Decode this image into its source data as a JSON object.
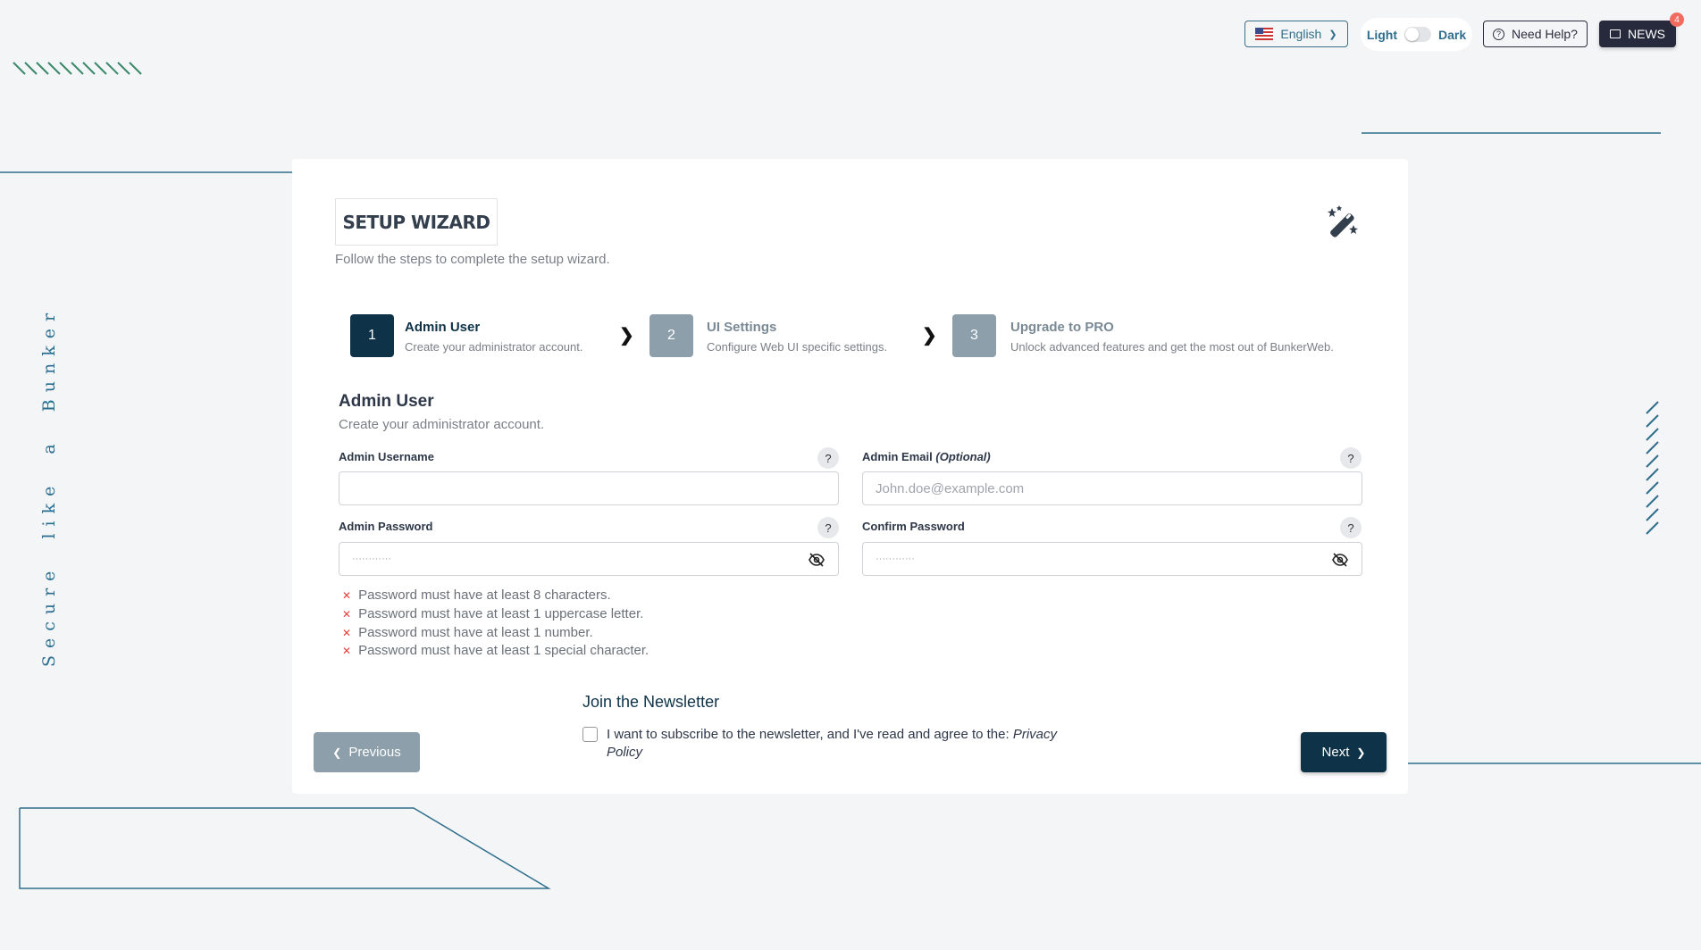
{
  "topbar": {
    "language": "English",
    "theme_light": "Light",
    "theme_dark": "Dark",
    "help": "Need Help?",
    "news": "NEWS",
    "news_badge": "4"
  },
  "side_text": "Secure like a Bunker",
  "wizard": {
    "title": "SETUP WIZARD",
    "subtitle": "Follow the steps to complete the setup wizard.",
    "steps": [
      {
        "number": "1",
        "title": "Admin User",
        "desc": "Create your administrator account.",
        "active": true
      },
      {
        "number": "2",
        "title": "UI Settings",
        "desc": "Configure Web UI specific settings.",
        "active": false
      },
      {
        "number": "3",
        "title": "Upgrade to PRO",
        "desc": "Unlock advanced features and get the most out of BunkerWeb.",
        "active": false
      }
    ]
  },
  "section": {
    "title": "Admin User",
    "desc": "Create your administrator account."
  },
  "fields": {
    "username": {
      "label": "Admin Username",
      "value": ""
    },
    "email": {
      "label": "Admin Email",
      "label_suffix": "(Optional)",
      "placeholder": "John.doe@example.com"
    },
    "password": {
      "label": "Admin Password",
      "placeholder": "············"
    },
    "confirm": {
      "label": "Confirm Password",
      "placeholder": "············"
    }
  },
  "rules": [
    "Password must have at least 8 characters.",
    "Password must have at least 1 uppercase letter.",
    "Password must have at least 1 number.",
    "Password must have at least 1 special character."
  ],
  "newsletter": {
    "title": "Join the Newsletter",
    "text": "I want to subscribe to the newsletter, and I've read and agree to the: ",
    "link": "Privacy Policy",
    "checked": false
  },
  "nav": {
    "previous": "Previous",
    "next": "Next"
  },
  "colors": {
    "primary": "#0e3349",
    "inactive": "#8c9fab",
    "accent": "#2f6e8c",
    "news_bg": "#272a3d",
    "badge": "#f36b5e",
    "error": "#e53e3e"
  }
}
